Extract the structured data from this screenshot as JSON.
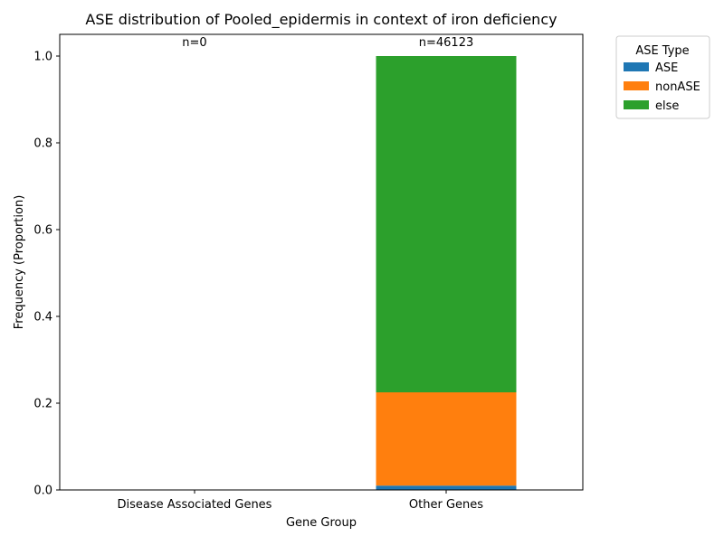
{
  "chart_data": {
    "type": "bar",
    "stacked": true,
    "title": "ASE distribution of Pooled_epidermis in context of iron deficiency",
    "xlabel": "Gene Group",
    "ylabel": "Frequency (Proportion)",
    "categories": [
      "Disease Associated Genes",
      "Other Genes"
    ],
    "counts": [
      "n=0",
      "n=46123"
    ],
    "ylim": [
      0,
      1.05
    ],
    "yticks": [
      "0.0",
      "0.2",
      "0.4",
      "0.6",
      "0.8",
      "1.0"
    ],
    "ytick_values": [
      0,
      0.2,
      0.4,
      0.6,
      0.8,
      1.0
    ],
    "grid": false,
    "legend": {
      "title": "ASE Type",
      "placement": "outside-right"
    },
    "series": [
      {
        "name": "ASE",
        "color": "#1f77b4",
        "values": [
          0,
          0.01
        ]
      },
      {
        "name": "nonASE",
        "color": "#ff7f0e",
        "values": [
          0,
          0.215
        ]
      },
      {
        "name": "else",
        "color": "#2ca02c",
        "values": [
          0,
          0.775
        ]
      }
    ]
  }
}
